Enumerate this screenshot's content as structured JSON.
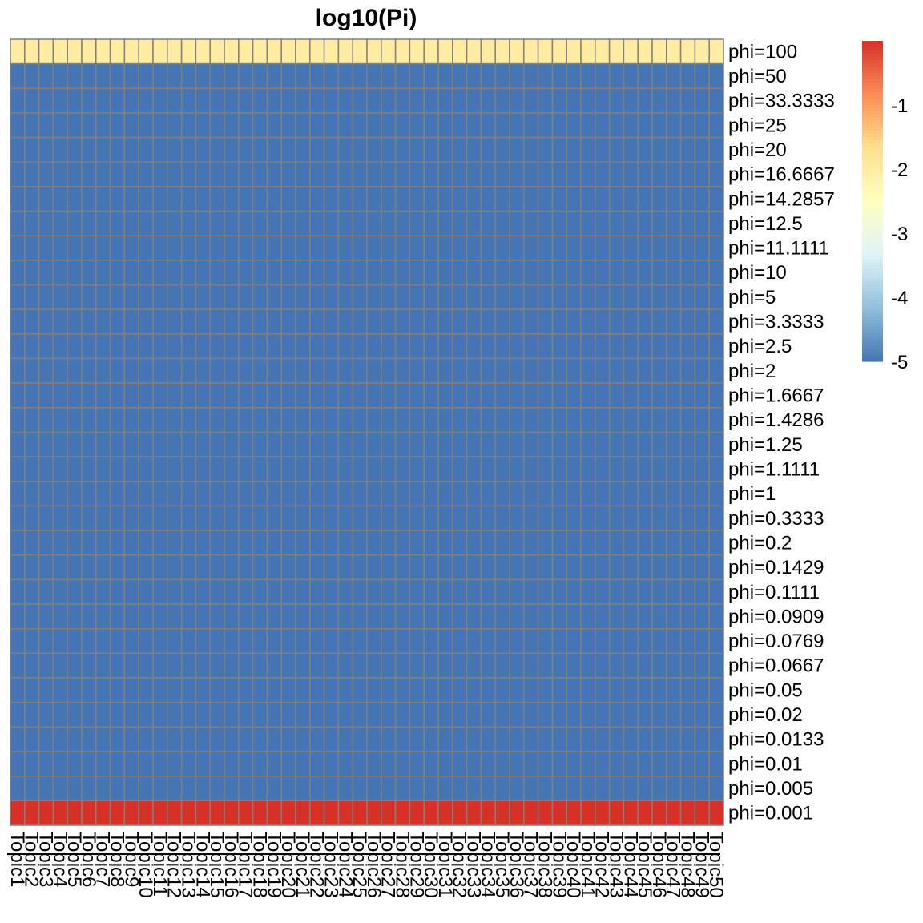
{
  "chart_data": {
    "type": "heatmap",
    "title": "log10(Pi)",
    "rows": [
      "phi=100",
      "phi=50",
      "phi=33.3333",
      "phi=25",
      "phi=20",
      "phi=16.6667",
      "phi=14.2857",
      "phi=12.5",
      "phi=11.1111",
      "phi=10",
      "phi=5",
      "phi=3.3333",
      "phi=2.5",
      "phi=2",
      "phi=1.6667",
      "phi=1.4286",
      "phi=1.25",
      "phi=1.1111",
      "phi=1",
      "phi=0.3333",
      "phi=0.2",
      "phi=0.1429",
      "phi=0.1111",
      "phi=0.0909",
      "phi=0.0769",
      "phi=0.0667",
      "phi=0.05",
      "phi=0.02",
      "phi=0.0133",
      "phi=0.01",
      "phi=0.005",
      "phi=0.001"
    ],
    "columns": [
      "Topic1",
      "Topic2",
      "Topic3",
      "Topic4",
      "Topic5",
      "Topic6",
      "Topic7",
      "Topic8",
      "Topic9",
      "Topic10",
      "Topic11",
      "Topic12",
      "Topic13",
      "Topic14",
      "Topic15",
      "Topic16",
      "Topic17",
      "Topic18",
      "Topic19",
      "Topic20",
      "Topic21",
      "Topic22",
      "Topic23",
      "Topic24",
      "Topic25",
      "Topic26",
      "Topic27",
      "Topic28",
      "Topic29",
      "Topic30",
      "Topic31",
      "Topic32",
      "Topic33",
      "Topic34",
      "Topic35",
      "Topic36",
      "Topic37",
      "Topic38",
      "Topic39",
      "Topic40",
      "Topic41",
      "Topic42",
      "Topic43",
      "Topic44",
      "Topic45",
      "Topic46",
      "Topic47",
      "Topic48",
      "Topic49",
      "Topic50"
    ],
    "row_values": [
      -2,
      -5,
      -5,
      -5,
      -5,
      -5,
      -5,
      -5,
      -5,
      -5,
      -5,
      -5,
      -5,
      -5,
      -5,
      -5,
      -5,
      -5,
      -5,
      -5,
      -5,
      -5,
      -5,
      -5,
      -5,
      -5,
      -5,
      -5,
      -5,
      -5,
      -5,
      0
    ],
    "value_note": "each row has the same value across all 50 columns",
    "color_range": [
      -5,
      0
    ],
    "colorbar_ticks": [
      "-1",
      "-2",
      "-3",
      "-4",
      "-5"
    ],
    "colorbar_tick_values": [
      -1,
      -2,
      -3,
      -4,
      -5
    ],
    "colors": [
      "#4575B4",
      "#91BFDB",
      "#E0F3F8",
      "#FFFFBF",
      "#FEE090",
      "#FC8D59",
      "#D73027"
    ],
    "grid_color": "#808080",
    "legend": "right"
  }
}
